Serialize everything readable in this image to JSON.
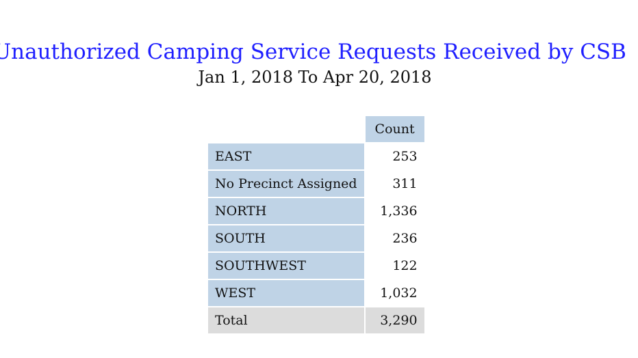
{
  "report": {
    "title": "Unauthorized Camping Service Requests Received by CSB",
    "subtitle": "Jan 1, 2018 To Apr 20, 2018"
  },
  "table": {
    "column_header": "Count",
    "rows": [
      {
        "label": "EAST",
        "count": "253"
      },
      {
        "label": "No Precinct Assigned",
        "count": "311"
      },
      {
        "label": "NORTH",
        "count": "1,336"
      },
      {
        "label": "SOUTH",
        "count": "236"
      },
      {
        "label": "SOUTHWEST",
        "count": "122"
      },
      {
        "label": "WEST",
        "count": "1,032"
      }
    ],
    "total": {
      "label": "Total",
      "count": "3,290"
    }
  },
  "colors": {
    "title": "#1f1fff",
    "header_fill": "#bfd3e6",
    "total_fill": "#dcdcdc"
  }
}
